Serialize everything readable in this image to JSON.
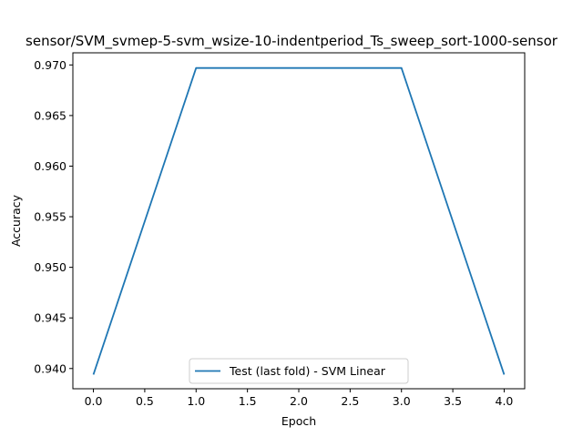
{
  "chart_data": {
    "type": "line",
    "title": "sensor/SVM_svmep-5-svm_wsize-10-indentperiod_Ts_sweep_sort-1000-sensor",
    "xlabel": "Epoch",
    "ylabel": "Accuracy",
    "xlim": [
      -0.2,
      4.2
    ],
    "ylim": [
      0.938,
      0.9712
    ],
    "xticks": [
      0.0,
      0.5,
      1.0,
      1.5,
      2.0,
      2.5,
      3.0,
      3.5,
      4.0
    ],
    "xtick_labels": [
      "0.0",
      "0.5",
      "1.0",
      "1.5",
      "2.0",
      "2.5",
      "3.0",
      "3.5",
      "4.0"
    ],
    "yticks": [
      0.94,
      0.945,
      0.95,
      0.955,
      0.96,
      0.965,
      0.97
    ],
    "ytick_labels": [
      "0.940",
      "0.945",
      "0.950",
      "0.955",
      "0.960",
      "0.965",
      "0.970"
    ],
    "grid": false,
    "legend_position": "lower center",
    "series": [
      {
        "name": "Test (last fold) - SVM Linear",
        "color": "#1f77b4",
        "x": [
          0,
          1,
          2,
          3,
          4
        ],
        "y": [
          0.9394,
          0.9697,
          0.9697,
          0.9697,
          0.9394
        ]
      }
    ]
  }
}
